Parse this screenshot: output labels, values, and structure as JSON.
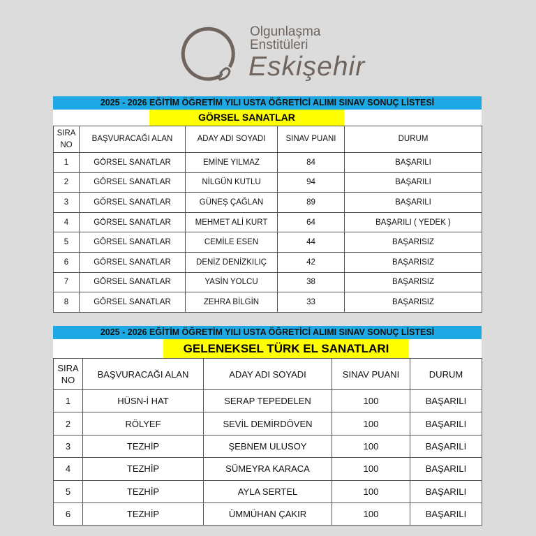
{
  "logo": {
    "line1": "Olgunlaşma",
    "line2": "Enstitüleri",
    "line3": "Eskişehir"
  },
  "tables": [
    {
      "title": "2025 -  2026 EĞİTİM ÖĞRETİM YILI USTA ÖĞRETİCİ ALIMI SINAV SONUÇ LİSTESİ",
      "category": "GÖRSEL SANATLAR",
      "headers": [
        "SIRA NO",
        "BAŞVURACAĞI ALAN",
        "ADAY ADI SOYADI",
        "SINAV PUANI",
        "DURUM"
      ],
      "rows": [
        [
          "1",
          "GÖRSEL SANATLAR",
          "EMİNE YILMAZ",
          "84",
          "BAŞARILI"
        ],
        [
          "2",
          "GÖRSEL SANATLAR",
          "NİLGÜN KUTLU",
          "94",
          "BAŞARILI"
        ],
        [
          "3",
          "GÖRSEL SANATLAR",
          "GÜNEŞ ÇAĞLAN",
          "89",
          "BAŞARILI"
        ],
        [
          "4",
          "GÖRSEL SANATLAR",
          "MEHMET ALİ KURT",
          "64",
          "BAŞARILI ( YEDEK )"
        ],
        [
          "5",
          "GÖRSEL SANATLAR",
          "CEMİLE ESEN",
          "44",
          "BAŞARISIZ"
        ],
        [
          "6",
          "GÖRSEL SANATLAR",
          "DENİZ DENİZKILIÇ",
          "42",
          "BAŞARISIZ"
        ],
        [
          "7",
          "GÖRSEL SANATLAR",
          "YASİN YOLCU",
          "38",
          "BAŞARISIZ"
        ],
        [
          "8",
          "GÖRSEL SANATLAR",
          "ZEHRA BİLGİN",
          "33",
          "BAŞARISIZ"
        ]
      ]
    },
    {
      "title": "2025 -  2026 EĞİTİM ÖĞRETİM YILI USTA ÖĞRETİCİ ALIMI SINAV SONUÇ LİSTESİ",
      "category": "GELENEKSEL TÜRK EL SANATLARI",
      "headers": [
        "SIRA NO",
        "BAŞVURACAĞI ALAN",
        "ADAY ADI SOYADI",
        "SINAV PUANI",
        "DURUM"
      ],
      "rows": [
        [
          "1",
          "HÜSN-İ HAT",
          "SERAP TEPEDELEN",
          "100",
          "BAŞARILI"
        ],
        [
          "2",
          "RÖLYEF",
          "SEVİL DEMİRDÖVEN",
          "100",
          "BAŞARILI"
        ],
        [
          "3",
          "TEZHİP",
          "ŞEBNEM ULUSOY",
          "100",
          "BAŞARILI"
        ],
        [
          "4",
          "TEZHİP",
          "SÜMEYRA KARACA",
          "100",
          "BAŞARILI"
        ],
        [
          "5",
          "TEZHİP",
          "AYLA SERTEL",
          "100",
          "BAŞARILI"
        ],
        [
          "6",
          "TEZHİP",
          "ÜMMÜHAN ÇAKIR",
          "100",
          "BAŞARILI"
        ]
      ]
    }
  ]
}
